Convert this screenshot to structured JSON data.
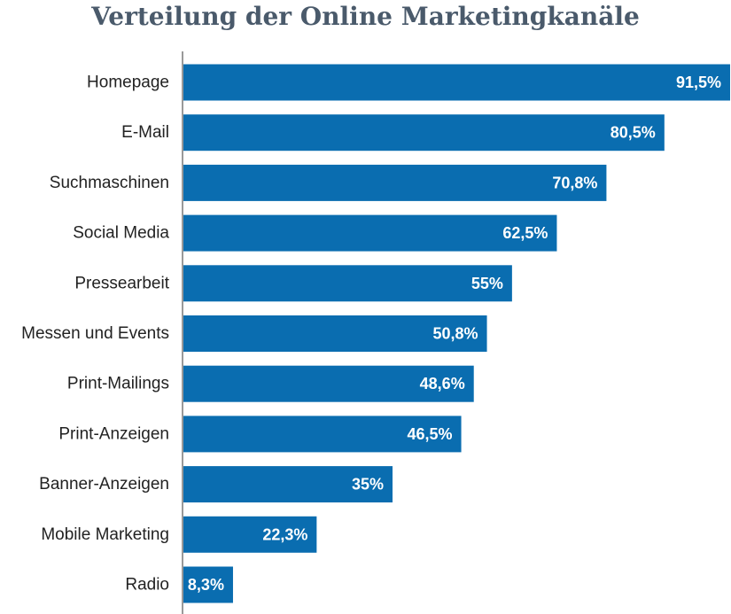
{
  "colors": {
    "bar": "#0a6db0",
    "title": "#4a5a6b",
    "axis": "#999999",
    "bar_label": "#ffffff",
    "category_label": "#222222"
  },
  "chart_data": {
    "type": "bar",
    "orientation": "horizontal",
    "title": "Verteilung der Online Marketingkanäle",
    "xlabel": "",
    "ylabel": "",
    "xlim": [
      0,
      91.5
    ],
    "grid": false,
    "legend": "none",
    "categories": [
      "Homepage",
      "E-Mail",
      "Suchmaschinen",
      "Social Media",
      "Pressearbeit",
      "Messen und Events",
      "Print-Mailings",
      "Print-Anzeigen",
      "Banner-Anzeigen",
      "Mobile Marketing",
      "Radio"
    ],
    "values": [
      91.5,
      80.5,
      70.8,
      62.5,
      55,
      50.8,
      48.6,
      46.5,
      35,
      22.3,
      8.3
    ],
    "value_labels": [
      "91,5%",
      "80,5%",
      "70,8%",
      "62,5%",
      "55%",
      "50,8%",
      "48,6%",
      "46,5%",
      "35%",
      "22,3%",
      "8,3%"
    ]
  }
}
